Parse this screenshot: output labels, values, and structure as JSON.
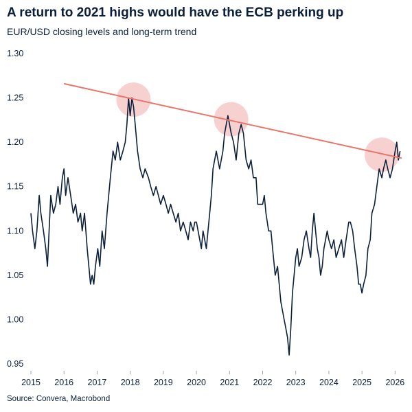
{
  "title": "A return to 2021 highs would have the ECB perking up",
  "subtitle": "EUR/USD closing levels and long-term trend",
  "source": "Source: Convera, Macrobond",
  "colors": {
    "series": "#0b1f3a",
    "trend": "#e8756a",
    "highlight": "#f2b3b0",
    "text": "#0b1f3a"
  },
  "chart_data": {
    "type": "line",
    "title": "A return to 2021 highs would have the ECB perking up",
    "subtitle": "EUR/USD closing levels and long-term trend",
    "xlabel": "",
    "ylabel": "",
    "grid": false,
    "legend": "none",
    "xlim": [
      2015.0,
      2026.2
    ],
    "ylim": [
      0.95,
      1.3
    ],
    "x_ticks": [
      "2015",
      "2016",
      "2017",
      "2018",
      "2019",
      "2020",
      "2021",
      "2022",
      "2023",
      "2024",
      "2025",
      "2026"
    ],
    "y_ticks": [
      "0.95",
      "1.00",
      "1.05",
      "1.10",
      "1.15",
      "1.20",
      "1.25",
      "1.30"
    ],
    "series": [
      {
        "values": [
          [
            2015.0,
            1.12
          ],
          [
            2015.05,
            1.1
          ],
          [
            2015.12,
            1.08
          ],
          [
            2015.18,
            1.1
          ],
          [
            2015.25,
            1.14
          ],
          [
            2015.3,
            1.12
          ],
          [
            2015.38,
            1.1
          ],
          [
            2015.45,
            1.08
          ],
          [
            2015.5,
            1.06
          ],
          [
            2015.55,
            1.1
          ],
          [
            2015.6,
            1.14
          ],
          [
            2015.68,
            1.12
          ],
          [
            2015.75,
            1.13
          ],
          [
            2015.82,
            1.15
          ],
          [
            2015.88,
            1.13
          ],
          [
            2015.95,
            1.16
          ],
          [
            2016.0,
            1.17
          ],
          [
            2016.05,
            1.14
          ],
          [
            2016.12,
            1.16
          ],
          [
            2016.2,
            1.14
          ],
          [
            2016.28,
            1.12
          ],
          [
            2016.35,
            1.13
          ],
          [
            2016.42,
            1.11
          ],
          [
            2016.5,
            1.12
          ],
          [
            2016.55,
            1.1
          ],
          [
            2016.62,
            1.12
          ],
          [
            2016.7,
            1.08
          ],
          [
            2016.75,
            1.06
          ],
          [
            2016.8,
            1.04
          ],
          [
            2016.85,
            1.05
          ],
          [
            2016.9,
            1.04
          ],
          [
            2016.95,
            1.06
          ],
          [
            2017.02,
            1.08
          ],
          [
            2017.08,
            1.06
          ],
          [
            2017.15,
            1.1
          ],
          [
            2017.22,
            1.08
          ],
          [
            2017.3,
            1.12
          ],
          [
            2017.4,
            1.16
          ],
          [
            2017.48,
            1.19
          ],
          [
            2017.55,
            1.18
          ],
          [
            2017.62,
            1.2
          ],
          [
            2017.7,
            1.18
          ],
          [
            2017.78,
            1.19
          ],
          [
            2017.85,
            1.2
          ],
          [
            2017.9,
            1.22
          ],
          [
            2017.95,
            1.25
          ],
          [
            2018.0,
            1.23
          ],
          [
            2018.05,
            1.25
          ],
          [
            2018.1,
            1.24
          ],
          [
            2018.15,
            1.22
          ],
          [
            2018.22,
            1.19
          ],
          [
            2018.3,
            1.17
          ],
          [
            2018.38,
            1.16
          ],
          [
            2018.45,
            1.17
          ],
          [
            2018.55,
            1.16
          ],
          [
            2018.62,
            1.15
          ],
          [
            2018.7,
            1.14
          ],
          [
            2018.78,
            1.15
          ],
          [
            2018.85,
            1.14
          ],
          [
            2018.92,
            1.13
          ],
          [
            2019.0,
            1.14
          ],
          [
            2019.08,
            1.13
          ],
          [
            2019.15,
            1.12
          ],
          [
            2019.22,
            1.13
          ],
          [
            2019.3,
            1.12
          ],
          [
            2019.38,
            1.11
          ],
          [
            2019.45,
            1.12
          ],
          [
            2019.52,
            1.1
          ],
          [
            2019.6,
            1.11
          ],
          [
            2019.68,
            1.1
          ],
          [
            2019.75,
            1.09
          ],
          [
            2019.82,
            1.11
          ],
          [
            2019.9,
            1.1
          ],
          [
            2019.95,
            1.11
          ],
          [
            2020.0,
            1.11
          ],
          [
            2020.05,
            1.1
          ],
          [
            2020.1,
            1.09
          ],
          [
            2020.15,
            1.08
          ],
          [
            2020.2,
            1.1
          ],
          [
            2020.25,
            1.09
          ],
          [
            2020.3,
            1.08
          ],
          [
            2020.35,
            1.1
          ],
          [
            2020.4,
            1.12
          ],
          [
            2020.45,
            1.14
          ],
          [
            2020.5,
            1.17
          ],
          [
            2020.55,
            1.18
          ],
          [
            2020.6,
            1.19
          ],
          [
            2020.65,
            1.18
          ],
          [
            2020.7,
            1.17
          ],
          [
            2020.75,
            1.18
          ],
          [
            2020.8,
            1.19
          ],
          [
            2020.85,
            1.21
          ],
          [
            2020.9,
            1.22
          ],
          [
            2020.95,
            1.23
          ],
          [
            2021.0,
            1.22
          ],
          [
            2021.05,
            1.21
          ],
          [
            2021.12,
            1.2
          ],
          [
            2021.2,
            1.18
          ],
          [
            2021.28,
            1.21
          ],
          [
            2021.35,
            1.22
          ],
          [
            2021.42,
            1.21
          ],
          [
            2021.5,
            1.18
          ],
          [
            2021.58,
            1.17
          ],
          [
            2021.65,
            1.18
          ],
          [
            2021.72,
            1.16
          ],
          [
            2021.8,
            1.16
          ],
          [
            2021.85,
            1.13
          ],
          [
            2021.92,
            1.13
          ],
          [
            2022.0,
            1.13
          ],
          [
            2022.05,
            1.14
          ],
          [
            2022.1,
            1.12
          ],
          [
            2022.18,
            1.1
          ],
          [
            2022.25,
            1.1
          ],
          [
            2022.3,
            1.08
          ],
          [
            2022.38,
            1.05
          ],
          [
            2022.45,
            1.06
          ],
          [
            2022.5,
            1.04
          ],
          [
            2022.55,
            1.02
          ],
          [
            2022.6,
            1.01
          ],
          [
            2022.65,
            1.0
          ],
          [
            2022.7,
            0.99
          ],
          [
            2022.75,
            0.98
          ],
          [
            2022.8,
            0.96
          ],
          [
            2022.85,
            0.99
          ],
          [
            2022.9,
            1.03
          ],
          [
            2022.95,
            1.05
          ],
          [
            2023.0,
            1.07
          ],
          [
            2023.05,
            1.08
          ],
          [
            2023.1,
            1.06
          ],
          [
            2023.18,
            1.07
          ],
          [
            2023.25,
            1.09
          ],
          [
            2023.32,
            1.1
          ],
          [
            2023.4,
            1.08
          ],
          [
            2023.45,
            1.07
          ],
          [
            2023.5,
            1.1
          ],
          [
            2023.55,
            1.12
          ],
          [
            2023.6,
            1.1
          ],
          [
            2023.65,
            1.08
          ],
          [
            2023.7,
            1.07
          ],
          [
            2023.75,
            1.05
          ],
          [
            2023.8,
            1.06
          ],
          [
            2023.85,
            1.08
          ],
          [
            2023.9,
            1.09
          ],
          [
            2023.95,
            1.1
          ],
          [
            2024.0,
            1.09
          ],
          [
            2024.08,
            1.08
          ],
          [
            2024.15,
            1.09
          ],
          [
            2024.22,
            1.07
          ],
          [
            2024.3,
            1.08
          ],
          [
            2024.38,
            1.09
          ],
          [
            2024.45,
            1.07
          ],
          [
            2024.52,
            1.09
          ],
          [
            2024.6,
            1.11
          ],
          [
            2024.65,
            1.11
          ],
          [
            2024.72,
            1.1
          ],
          [
            2024.78,
            1.08
          ],
          [
            2024.85,
            1.06
          ],
          [
            2024.9,
            1.04
          ],
          [
            2024.95,
            1.04
          ],
          [
            2025.0,
            1.03
          ],
          [
            2025.05,
            1.04
          ],
          [
            2025.12,
            1.05
          ],
          [
            2025.18,
            1.08
          ],
          [
            2025.25,
            1.09
          ],
          [
            2025.3,
            1.12
          ],
          [
            2025.38,
            1.13
          ],
          [
            2025.45,
            1.15
          ],
          [
            2025.52,
            1.17
          ],
          [
            2025.6,
            1.16
          ],
          [
            2025.65,
            1.17
          ],
          [
            2025.72,
            1.18
          ],
          [
            2025.78,
            1.17
          ],
          [
            2025.85,
            1.16
          ],
          [
            2025.92,
            1.17
          ],
          [
            2026.0,
            1.19
          ],
          [
            2026.05,
            1.2
          ],
          [
            2026.1,
            1.18
          ],
          [
            2026.15,
            1.19
          ]
        ]
      }
    ],
    "trend_line": [
      [
        2016.0,
        1.266
      ],
      [
        2026.2,
        1.182
      ]
    ],
    "highlights": [
      {
        "x": 2018.1,
        "y": 1.248
      },
      {
        "x": 2021.05,
        "y": 1.226
      },
      {
        "x": 2025.6,
        "y": 1.186
      }
    ]
  }
}
